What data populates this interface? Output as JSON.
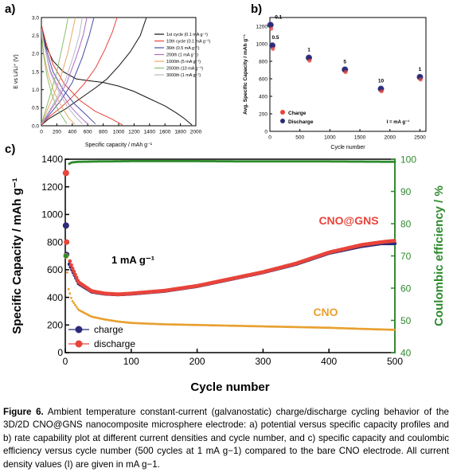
{
  "figure": {
    "caption_label": "Figure 6.",
    "caption_text": "Ambient temperature constant-current (galvanostatic) charge/discharge cycling behavior of the 3D/2D CNO@GNS nanocomposite microsphere electrode: a) potential versus specific capacity profiles and b) rate capability plot at different current densities and cycle number, and c) specific capacity and coulombic efficiency versus cycle number (500 cycles at 1 mA g−1) compared to the bare CNO electrode. All current density values (I) are given in mA g−1."
  },
  "chart_data": [
    {
      "panel": "a)",
      "type": "line",
      "xlabel": "Specific capacity / mAh g⁻¹",
      "ylabel": "E vs Li/Li⁺ (V)",
      "xlim": [
        0,
        2000
      ],
      "ylim": [
        0,
        3.0
      ],
      "xticks": [
        "0",
        "200",
        "400",
        "600",
        "800",
        "1000",
        "1200",
        "1400",
        "1600",
        "1800",
        "2000"
      ],
      "yticks": [
        "0.0",
        "0.5",
        "1.0",
        "1.5",
        "2.0",
        "2.5",
        "3.0"
      ],
      "legend_position": "right",
      "series": [
        {
          "name": "1st cycle (0.1 mA g⁻¹)",
          "color": "#111111",
          "discharge": [
            [
              0,
              2.8
            ],
            [
              60,
              2.2
            ],
            [
              150,
              1.8
            ],
            [
              280,
              1.5
            ],
            [
              450,
              1.3
            ],
            [
              600,
              1.25
            ],
            [
              800,
              1.2
            ],
            [
              1000,
              1.1
            ],
            [
              1200,
              0.95
            ],
            [
              1400,
              0.75
            ],
            [
              1600,
              0.55
            ],
            [
              1750,
              0.35
            ],
            [
              1850,
              0.2
            ],
            [
              1950,
              0.02
            ]
          ],
          "charge": [
            [
              0,
              0.02
            ],
            [
              100,
              0.2
            ],
            [
              300,
              0.45
            ],
            [
              500,
              0.75
            ],
            [
              700,
              1.05
            ],
            [
              850,
              1.3
            ],
            [
              1000,
              1.65
            ],
            [
              1150,
              2.05
            ],
            [
              1280,
              2.5
            ],
            [
              1360,
              3.0
            ]
          ]
        },
        {
          "name": "10th cycle (0.1 mA g⁻¹)",
          "color": "#e8443a",
          "discharge": [
            [
              0,
              2.8
            ],
            [
              60,
              2.3
            ],
            [
              150,
              1.7
            ],
            [
              300,
              1.15
            ],
            [
              500,
              0.7
            ],
            [
              700,
              0.4
            ],
            [
              900,
              0.2
            ],
            [
              1050,
              0.02
            ]
          ],
          "charge": [
            [
              0,
              0.02
            ],
            [
              100,
              0.25
            ],
            [
              250,
              0.5
            ],
            [
              400,
              0.8
            ],
            [
              550,
              1.15
            ],
            [
              700,
              1.6
            ],
            [
              820,
              2.1
            ],
            [
              920,
              2.6
            ],
            [
              980,
              3.0
            ]
          ]
        },
        {
          "name": "36th (0.5 mA g⁻¹)",
          "color": "#4b4ba8",
          "discharge": [
            [
              0,
              2.7
            ],
            [
              50,
              2.2
            ],
            [
              150,
              1.5
            ],
            [
              280,
              1.0
            ],
            [
              430,
              0.6
            ],
            [
              580,
              0.3
            ],
            [
              700,
              0.05
            ]
          ],
          "charge": [
            [
              0,
              0.05
            ],
            [
              100,
              0.3
            ],
            [
              250,
              0.7
            ],
            [
              400,
              1.2
            ],
            [
              530,
              1.9
            ],
            [
              620,
              2.5
            ],
            [
              680,
              3.0
            ]
          ]
        },
        {
          "name": "200th (1 mA g⁻¹)",
          "color": "#b06cc0",
          "discharge": [
            [
              0,
              2.7
            ],
            [
              40,
              2.2
            ],
            [
              120,
              1.5
            ],
            [
              230,
              1.0
            ],
            [
              370,
              0.55
            ],
            [
              500,
              0.25
            ],
            [
              600,
              0.05
            ]
          ],
          "charge": [
            [
              0,
              0.05
            ],
            [
              80,
              0.3
            ],
            [
              200,
              0.7
            ],
            [
              330,
              1.2
            ],
            [
              450,
              1.9
            ],
            [
              540,
              2.5
            ],
            [
              590,
              3.0
            ]
          ]
        },
        {
          "name": "1000th (5 mA g⁻¹)",
          "color": "#e8a86a",
          "discharge": [
            [
              0,
              2.6
            ],
            [
              30,
              2.0
            ],
            [
              90,
              1.4
            ],
            [
              170,
              0.9
            ],
            [
              270,
              0.5
            ],
            [
              360,
              0.2
            ],
            [
              430,
              0.05
            ]
          ],
          "charge": [
            [
              0,
              0.05
            ],
            [
              60,
              0.35
            ],
            [
              150,
              0.8
            ],
            [
              250,
              1.35
            ],
            [
              340,
              2.0
            ],
            [
              400,
              2.6
            ],
            [
              440,
              3.0
            ]
          ]
        },
        {
          "name": "2000th (10 mA g⁻¹)",
          "color": "#8ac06c",
          "discharge": [
            [
              0,
              2.6
            ],
            [
              25,
              2.0
            ],
            [
              70,
              1.4
            ],
            [
              130,
              0.9
            ],
            [
              200,
              0.5
            ],
            [
              270,
              0.25
            ],
            [
              330,
              0.05
            ]
          ],
          "charge": [
            [
              0,
              0.05
            ],
            [
              50,
              0.4
            ],
            [
              120,
              0.9
            ],
            [
              200,
              1.5
            ],
            [
              270,
              2.2
            ],
            [
              320,
              2.7
            ],
            [
              345,
              3.0
            ]
          ]
        },
        {
          "name": "3000th (1 mA g⁻¹)",
          "color": "#b8b8c8",
          "discharge": [
            [
              0,
              2.7
            ],
            [
              40,
              2.2
            ],
            [
              110,
              1.5
            ],
            [
              210,
              1.0
            ],
            [
              330,
              0.55
            ],
            [
              440,
              0.25
            ],
            [
              530,
              0.05
            ]
          ],
          "charge": [
            [
              0,
              0.05
            ],
            [
              70,
              0.3
            ],
            [
              180,
              0.7
            ],
            [
              300,
              1.2
            ],
            [
              410,
              1.9
            ],
            [
              490,
              2.5
            ],
            [
              530,
              3.0
            ]
          ]
        }
      ]
    },
    {
      "panel": "b)",
      "type": "scatter",
      "xlabel": "Cycle number",
      "ylabel": "Avg. Specific Capacity / mAh g⁻¹",
      "xlim": [
        0,
        2600
      ],
      "ylim": [
        0,
        1300
      ],
      "xticks": [
        "0",
        "500",
        "1000",
        "1500",
        "2000",
        "2500"
      ],
      "yticks": [
        "0",
        "200",
        "400",
        "600",
        "800",
        "1000",
        "1200"
      ],
      "legend_position": "bottom-left",
      "annotation": "I = mA g⁻¹",
      "series": [
        {
          "name": "Charge",
          "color": "#e8443a",
          "points": [
            [
              10,
              1195
            ],
            [
              40,
              965
            ],
            [
              650,
              830
            ],
            [
              1250,
              700
            ],
            [
              1850,
              480
            ],
            [
              2500,
              615
            ]
          ]
        },
        {
          "name": "Discharge",
          "color": "#2b2b7a",
          "points": [
            [
              10,
              1215
            ],
            [
              40,
              980
            ],
            [
              650,
              840
            ],
            [
              1250,
              705
            ],
            [
              1850,
              485
            ],
            [
              2500,
              620
            ]
          ]
        }
      ],
      "point_labels": [
        {
          "x": 10,
          "y": 1215,
          "text": "0.1"
        },
        {
          "x": 40,
          "y": 980,
          "text": "0.5"
        },
        {
          "x": 650,
          "y": 840,
          "text": "1"
        },
        {
          "x": 1250,
          "y": 705,
          "text": "5"
        },
        {
          "x": 1850,
          "y": 485,
          "text": "10"
        },
        {
          "x": 2500,
          "y": 620,
          "text": "1"
        }
      ]
    },
    {
      "panel": "c)",
      "type": "scatter",
      "xlabel": "Cycle number",
      "ylabel": "Specific Capacity / mAh g⁻¹",
      "y2label": "Coulombic efficiency / %",
      "xlim": [
        0,
        500
      ],
      "ylim": [
        0,
        1400
      ],
      "y2lim": [
        40,
        100
      ],
      "xticks": [
        "0",
        "100",
        "200",
        "300",
        "400",
        "500"
      ],
      "yticks": [
        "0",
        "200",
        "400",
        "600",
        "800",
        "1000",
        "1200",
        "1400"
      ],
      "y2ticks": [
        "40",
        "50",
        "60",
        "70",
        "80",
        "90",
        "100"
      ],
      "legend_position": "bottom-left",
      "annotations": [
        "1 mA g⁻¹",
        "CNO@GNS",
        "CNO"
      ],
      "series": [
        {
          "name": "charge",
          "color": "#2b2b7a",
          "axis": "left",
          "points": [
            [
              1,
              920
            ],
            [
              2,
              710
            ],
            [
              5,
              650
            ],
            [
              10,
              600
            ],
            [
              20,
              500
            ],
            [
              40,
              440
            ],
            [
              60,
              425
            ],
            [
              80,
              420
            ],
            [
              100,
              425
            ],
            [
              150,
              445
            ],
            [
              200,
              480
            ],
            [
              250,
              530
            ],
            [
              300,
              580
            ],
            [
              350,
              640
            ],
            [
              400,
              720
            ],
            [
              450,
              770
            ],
            [
              480,
              790
            ],
            [
              500,
              790
            ]
          ]
        },
        {
          "name": "discharge",
          "color": "#e8443a",
          "axis": "left",
          "points": [
            [
              1,
              1300
            ],
            [
              2,
              800
            ],
            [
              5,
              690
            ],
            [
              10,
              620
            ],
            [
              20,
              510
            ],
            [
              40,
              445
            ],
            [
              60,
              428
            ],
            [
              80,
              422
            ],
            [
              100,
              428
            ],
            [
              150,
              448
            ],
            [
              200,
              483
            ],
            [
              250,
              533
            ],
            [
              300,
              583
            ],
            [
              350,
              645
            ],
            [
              400,
              725
            ],
            [
              450,
              780
            ],
            [
              480,
              800
            ],
            [
              500,
              810
            ]
          ]
        },
        {
          "name": "CNO",
          "color": "#e8a030",
          "axis": "left",
          "points": [
            [
              1,
              700
            ],
            [
              5,
              460
            ],
            [
              10,
              380
            ],
            [
              20,
              310
            ],
            [
              40,
              260
            ],
            [
              60,
              240
            ],
            [
              80,
              225
            ],
            [
              100,
              215
            ],
            [
              150,
              205
            ],
            [
              200,
              200
            ],
            [
              250,
              195
            ],
            [
              300,
              190
            ],
            [
              350,
              185
            ],
            [
              400,
              180
            ],
            [
              450,
              172
            ],
            [
              500,
              165
            ]
          ]
        },
        {
          "name": "Coulombic efficiency",
          "color": "#2e8b2e",
          "axis": "right",
          "points": [
            [
              1,
              70
            ],
            [
              2,
              97
            ],
            [
              5,
              98.5
            ],
            [
              10,
              99
            ],
            [
              20,
              99.2
            ],
            [
              50,
              99.3
            ],
            [
              100,
              99.4
            ],
            [
              200,
              99.4
            ],
            [
              300,
              99.3
            ],
            [
              400,
              99.3
            ],
            [
              500,
              99.2
            ]
          ]
        }
      ]
    }
  ]
}
